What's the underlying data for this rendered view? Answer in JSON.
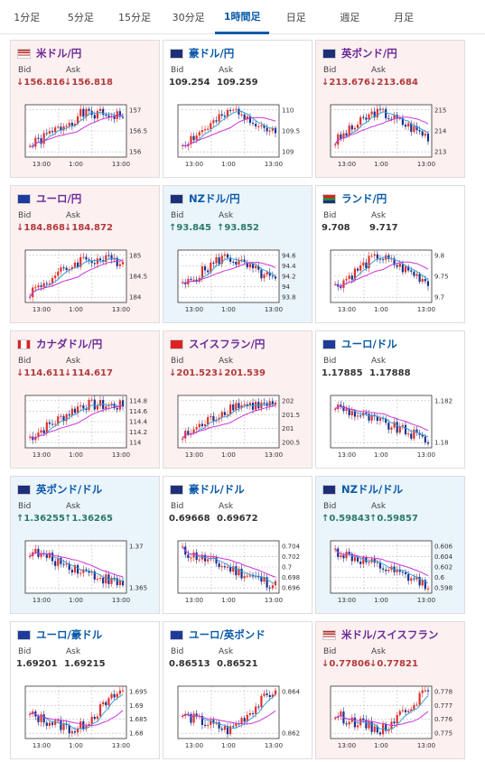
{
  "tabs": [
    {
      "label": "1分足"
    },
    {
      "label": "5分足"
    },
    {
      "label": "15分足"
    },
    {
      "label": "30分足"
    },
    {
      "label": "1時間足",
      "active": true
    },
    {
      "label": "日足"
    },
    {
      "label": "週足"
    },
    {
      "label": "月足"
    }
  ],
  "labels": {
    "bid": "Bid",
    "ask": "Ask"
  },
  "cards": [
    {
      "pair": "米ドル/円",
      "flag": "us-jp",
      "trend": "down",
      "bid": "↓156.816",
      "ask": "↓156.818",
      "yticks": [
        "157",
        "156.5",
        "156"
      ],
      "xticks": [
        "13:00",
        "1:00",
        "13:00"
      ],
      "seed": 1,
      "shape": "up"
    },
    {
      "pair": "豪ドル/円",
      "flag": "au-jp",
      "trend": "flat",
      "bid": "109.254",
      "ask": "109.259",
      "yticks": [
        "110",
        "109.5",
        "109"
      ],
      "xticks": [
        "13:00",
        "1:00",
        "13:00"
      ],
      "seed": 2,
      "shape": "upfall"
    },
    {
      "pair": "英ポンド/円",
      "flag": "gb-jp",
      "trend": "down",
      "bid": "↓213.676",
      "ask": "↓213.684",
      "yticks": [
        "215",
        "214",
        "213"
      ],
      "xticks": [
        "13:00",
        "1:00",
        "13:00"
      ],
      "seed": 3,
      "shape": "hump"
    },
    {
      "pair": "ユーロ/円",
      "flag": "eu-jp",
      "trend": "down",
      "bid": "↓184.868",
      "ask": "↓184.872",
      "yticks": [
        "185",
        "184.5",
        "184"
      ],
      "xticks": [
        "13:00",
        "1:00",
        "13:00"
      ],
      "seed": 4,
      "shape": "up"
    },
    {
      "pair": "NZドル/円",
      "flag": "nz-jp",
      "trend": "up",
      "bid": "↑93.845",
      "ask": "↑93.852",
      "yticks": [
        "94.6",
        "94.4",
        "94.2",
        "94",
        "93.8"
      ],
      "xticks": [
        "13:00",
        "1:00",
        "13:00"
      ],
      "seed": 5,
      "shape": "hump"
    },
    {
      "pair": "ランド/円",
      "flag": "za-jp",
      "trend": "flat",
      "bid": "9.708",
      "ask": "9.717",
      "yticks": [
        "9.8",
        "9.75",
        "9.7"
      ],
      "xticks": [
        "13:00",
        "1:00",
        "13:00"
      ],
      "seed": 6,
      "shape": "hump"
    },
    {
      "pair": "カナダドル/円",
      "flag": "ca-jp",
      "trend": "down",
      "bid": "↓114.611",
      "ask": "↓114.617",
      "yticks": [
        "114.8",
        "114.6",
        "114.4",
        "114.2",
        "114"
      ],
      "xticks": [
        "13:00",
        "1:00",
        "13:00"
      ],
      "seed": 7,
      "shape": "up"
    },
    {
      "pair": "スイスフラン/円",
      "flag": "ch-jp",
      "trend": "down",
      "bid": "↓201.523",
      "ask": "↓201.539",
      "yticks": [
        "202",
        "201.5",
        "201",
        "200.5"
      ],
      "xticks": [
        "13:00",
        "1:00",
        "13:00"
      ],
      "seed": 8,
      "shape": "up"
    },
    {
      "pair": "ユーロ/ドル",
      "flag": "eu-us",
      "trend": "flat",
      "bid": "1.17885",
      "ask": "1.17888",
      "yticks": [
        "1.182",
        "1.18"
      ],
      "xticks": [
        "13:00",
        "1:00",
        "13:00"
      ],
      "seed": 9,
      "shape": "down"
    },
    {
      "pair": "英ポンド/ドル",
      "flag": "gb-us",
      "trend": "up",
      "bid": "↑1.36255",
      "ask": "↑1.36265",
      "yticks": [
        "1.37",
        "1.365"
      ],
      "xticks": [
        "13:00",
        "1:00",
        "13:00"
      ],
      "seed": 10,
      "shape": "down"
    },
    {
      "pair": "豪ドル/ドル",
      "flag": "au-us",
      "trend": "flat",
      "bid": "0.69668",
      "ask": "0.69672",
      "yticks": [
        "0.704",
        "0.702",
        "0.7",
        "0.698",
        "0.696"
      ],
      "xticks": [
        "13:00",
        "1:00",
        "13:00"
      ],
      "seed": 11,
      "shape": "down"
    },
    {
      "pair": "NZドル/ドル",
      "flag": "nz-us",
      "trend": "up",
      "bid": "↑0.59843",
      "ask": "↑0.59857",
      "yticks": [
        "0.606",
        "0.604",
        "0.602",
        "0.6",
        "0.598"
      ],
      "xticks": [
        "13:00",
        "1:00",
        "13:00"
      ],
      "seed": 12,
      "shape": "down"
    },
    {
      "pair": "ユーロ/豪ドル",
      "flag": "eu-au",
      "trend": "flat",
      "bid": "1.69201",
      "ask": "1.69215",
      "yticks": [
        "1.695",
        "1.69",
        "1.685",
        "1.68"
      ],
      "xticks": [
        "13:00",
        "1:00",
        "13:00"
      ],
      "seed": 13,
      "shape": "dipup"
    },
    {
      "pair": "ユーロ/英ポンド",
      "flag": "eu-gb",
      "trend": "flat",
      "bid": "0.86513",
      "ask": "0.86521",
      "yticks": [
        "0.864",
        "0.862"
      ],
      "xticks": [
        "13:00",
        "1:00",
        "13:00"
      ],
      "seed": 14,
      "shape": "dipup"
    },
    {
      "pair": "米ドル/スイスフラン",
      "flag": "us-ch",
      "trend": "down",
      "bid": "↓0.77806",
      "ask": "↓0.77821",
      "yticks": [
        "0.778",
        "0.777",
        "0.776",
        "0.775"
      ],
      "xticks": [
        "13:00",
        "1:00",
        "13:00"
      ],
      "seed": 15,
      "shape": "dipup"
    }
  ],
  "colors": {
    "up_candle": "#e0302a",
    "down_candle": "#1b2f8c",
    "ma_short": "#3aa0d8",
    "ma_long": "#c936d6"
  }
}
